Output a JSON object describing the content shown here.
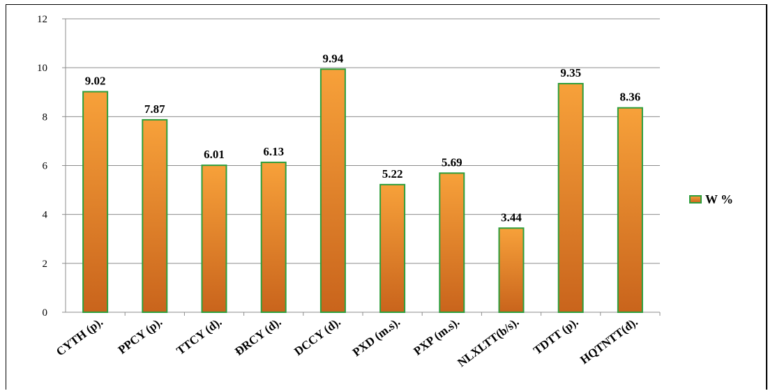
{
  "chart_data": {
    "type": "bar",
    "categories": [
      "CYTH (p).",
      "PPCY (p).",
      "TTCY (d).",
      "ĐRCY (d).",
      "DCCY (d).",
      "PXD (m.s).",
      "PXP (m.s).",
      "NLXLTT(b/s).",
      "TDTT (p).",
      "HQTNTT(đ)."
    ],
    "series": [
      {
        "name": "W %",
        "values": [
          9.02,
          7.87,
          6.01,
          6.13,
          9.94,
          5.22,
          5.69,
          3.44,
          9.35,
          8.36
        ]
      }
    ],
    "data_labels": [
      "9.02",
      "7.87",
      "6.01",
      "6.13",
      "9.94",
      "5.22",
      "5.69",
      "3.44",
      "9.35",
      "8.36"
    ],
    "y_ticks": [
      "0",
      "2",
      "4",
      "6",
      "8",
      "10",
      "12"
    ],
    "ylim": [
      0,
      12
    ],
    "grid": true,
    "legend_position": "right",
    "colors": {
      "bar_top": "#f7a13a",
      "bar_bottom": "#c9641c",
      "bar_stroke": "#2e9e3c",
      "grid": "#8c8c8c",
      "axis": "#8c8c8c"
    }
  }
}
